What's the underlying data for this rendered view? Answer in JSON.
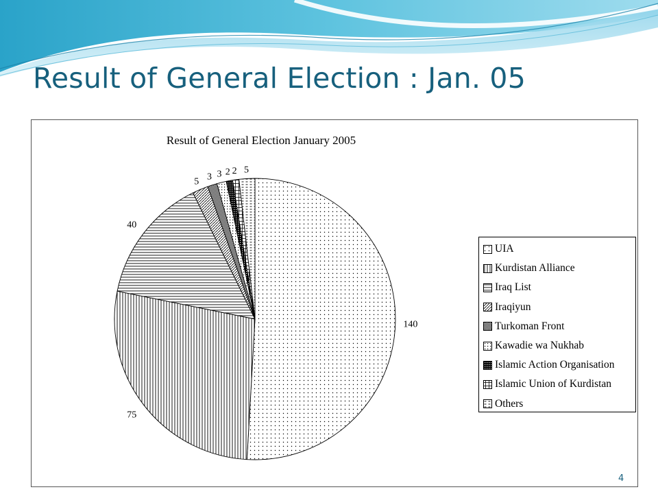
{
  "slide": {
    "title": "Result of General Election : Jan. 05",
    "page_number": "4",
    "accent_color": "#17607d"
  },
  "chart_data": {
    "type": "pie",
    "title": "Result of General Election January 2005",
    "legend_position": "right",
    "slices": [
      {
        "label": "UIA",
        "value": 140,
        "data_label": "140",
        "pattern": "dots"
      },
      {
        "label": "Kurdistan Alliance",
        "value": 75,
        "data_label": "75",
        "pattern": "vertical"
      },
      {
        "label": "Iraq List",
        "value": 40,
        "data_label": "40",
        "pattern": "horizontal"
      },
      {
        "label": "Iraqiyun",
        "value": 5,
        "data_label": "5",
        "pattern": "diagonal"
      },
      {
        "label": "Turkoman Front",
        "value": 3,
        "data_label": "3",
        "pattern": "dense"
      },
      {
        "label": "Kawadie wa Nukhab",
        "value": 3,
        "data_label": "3",
        "pattern": "dotgrid"
      },
      {
        "label": "Islamic Action Organisation",
        "value": 2,
        "data_label": "2",
        "pattern": "checker"
      },
      {
        "label": "Islamic Union of Kurdistan",
        "value": 2,
        "data_label": "2",
        "pattern": "cross"
      },
      {
        "label": "Others",
        "value": 5,
        "data_label": "5",
        "pattern": "dashes"
      }
    ]
  }
}
